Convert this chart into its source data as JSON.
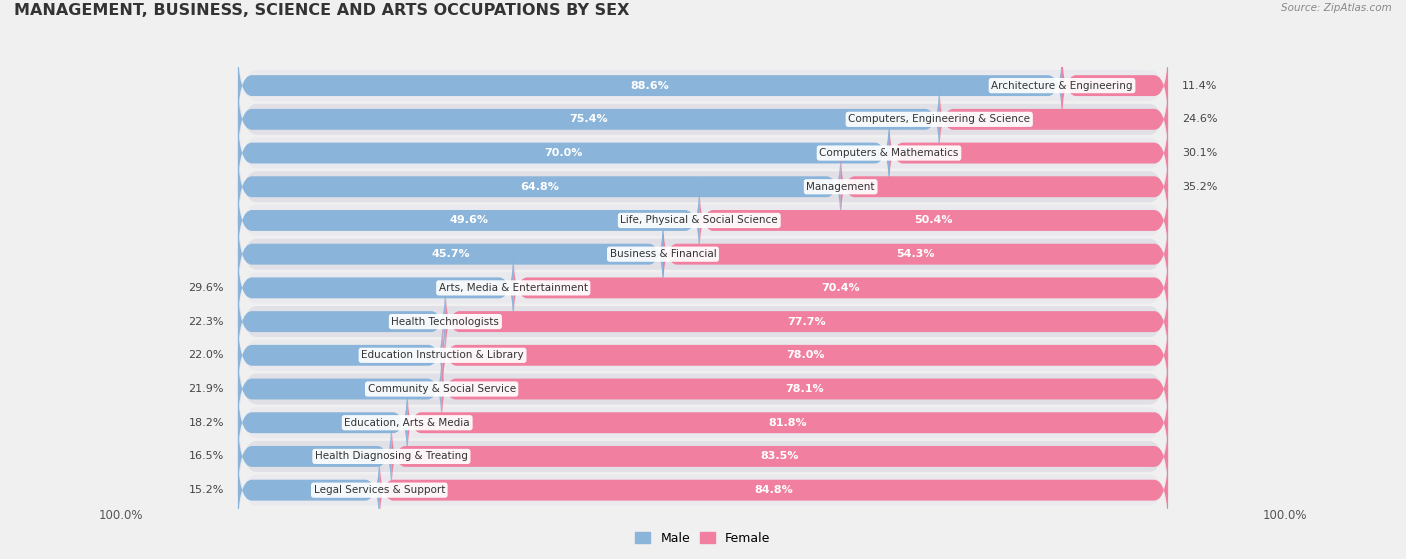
{
  "title": "MANAGEMENT, BUSINESS, SCIENCE AND ARTS OCCUPATIONS BY SEX",
  "source": "Source: ZipAtlas.com",
  "categories": [
    "Architecture & Engineering",
    "Computers, Engineering & Science",
    "Computers & Mathematics",
    "Management",
    "Life, Physical & Social Science",
    "Business & Financial",
    "Arts, Media & Entertainment",
    "Health Technologists",
    "Education Instruction & Library",
    "Community & Social Service",
    "Education, Arts & Media",
    "Health Diagnosing & Treating",
    "Legal Services & Support"
  ],
  "male_pct": [
    88.6,
    75.4,
    70.0,
    64.8,
    49.6,
    45.7,
    29.6,
    22.3,
    22.0,
    21.9,
    18.2,
    16.5,
    15.2
  ],
  "female_pct": [
    11.4,
    24.6,
    30.1,
    35.2,
    50.4,
    54.3,
    70.4,
    77.7,
    78.0,
    78.1,
    81.8,
    83.5,
    84.8
  ],
  "male_color": "#8ab4d9",
  "female_color": "#f07fa0",
  "male_label": "Male",
  "female_label": "Female",
  "bg_color": "#f0f0f0",
  "row_light": "#e8e8ec",
  "row_dark": "#dddde3",
  "bar_bg": "#d8d8e0",
  "title_fontsize": 11.5,
  "label_fontsize": 8,
  "figsize": [
    14.06,
    5.59
  ]
}
